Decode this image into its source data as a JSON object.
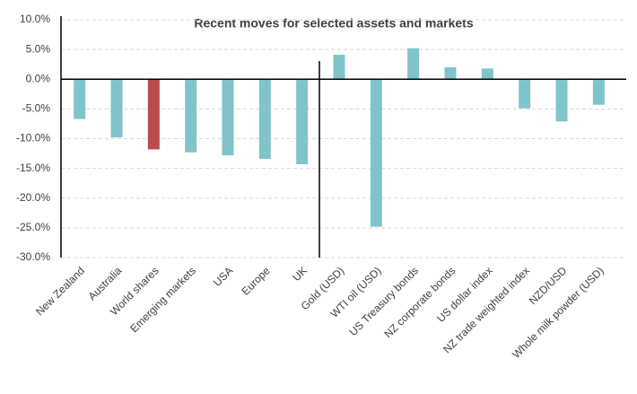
{
  "chart_data": {
    "type": "bar",
    "title": "Recent moves for selected assets and markets",
    "categories": [
      "New Zealand",
      "Australia",
      "World shares",
      "Emerging markets",
      "USA",
      "Europe",
      "UK",
      "Gold (USD)",
      "WTI oil (USD)",
      "US Treasury bonds",
      "NZ corporate bonds",
      "US dollar index",
      "NZ trade weighted index",
      "NZD/USD",
      "Whole milk powder (USD)"
    ],
    "values": [
      -6.7,
      -9.8,
      -11.8,
      -12.3,
      -12.8,
      -13.4,
      -14.3,
      4.1,
      -24.8,
      5.2,
      2.0,
      1.8,
      -4.9,
      -7.1,
      -4.3
    ],
    "colors": [
      "#7fc4c9",
      "#7fc4c9",
      "#b84c4c",
      "#7fc4c9",
      "#7fc4c9",
      "#7fc4c9",
      "#7fc4c9",
      "#7fc4c9",
      "#7fc4c9",
      "#7fc4c9",
      "#7fc4c9",
      "#7fc4c9",
      "#7fc4c9",
      "#7fc4c9",
      "#7fc4c9"
    ],
    "ylim": [
      -30,
      10
    ],
    "yticks": [
      {
        "value": -30,
        "label": "-30.0%"
      },
      {
        "value": -25,
        "label": "-25.0%"
      },
      {
        "value": -20,
        "label": "-20.0%"
      },
      {
        "value": -15,
        "label": "-15.0%"
      },
      {
        "value": -10,
        "label": "-10.0%"
      },
      {
        "value": -5,
        "label": "-5.0%"
      },
      {
        "value": 0,
        "label": "0.0%"
      },
      {
        "value": 5,
        "label": "5.0%"
      },
      {
        "value": 10,
        "label": "10.0%"
      }
    ],
    "grid": true
  }
}
